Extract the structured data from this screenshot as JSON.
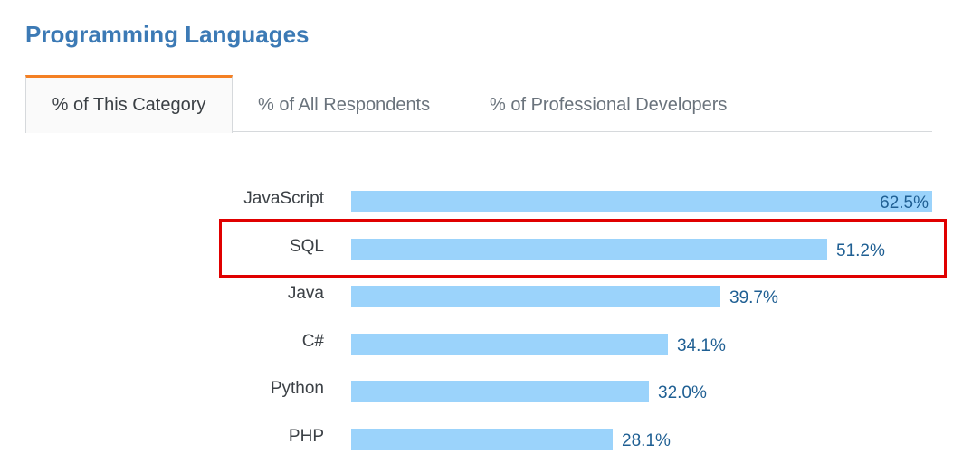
{
  "title": "Programming Languages",
  "tabs": [
    {
      "label": "% of This Category",
      "active": true
    },
    {
      "label": "% of All Respondents",
      "active": false
    },
    {
      "label": "% of Professional Developers",
      "active": false
    }
  ],
  "colors": {
    "title": "#3c7ab5",
    "active_tab_accent": "#f48024",
    "bar": "#9bd3fb",
    "value_text": "#1f5f93",
    "highlight": "#e00000"
  },
  "highlighted_category": "SQL",
  "chart_data": {
    "type": "bar",
    "orientation": "horizontal",
    "categories": [
      "JavaScript",
      "SQL",
      "Java",
      "C#",
      "Python",
      "PHP"
    ],
    "values": [
      62.5,
      51.2,
      39.7,
      34.1,
      32.0,
      28.1
    ],
    "value_labels": [
      "62.5%",
      "51.2%",
      "39.7%",
      "34.1%",
      "32.0%",
      "28.1%"
    ],
    "xlim": [
      0,
      62.5
    ],
    "grid": false,
    "legend": "none"
  }
}
